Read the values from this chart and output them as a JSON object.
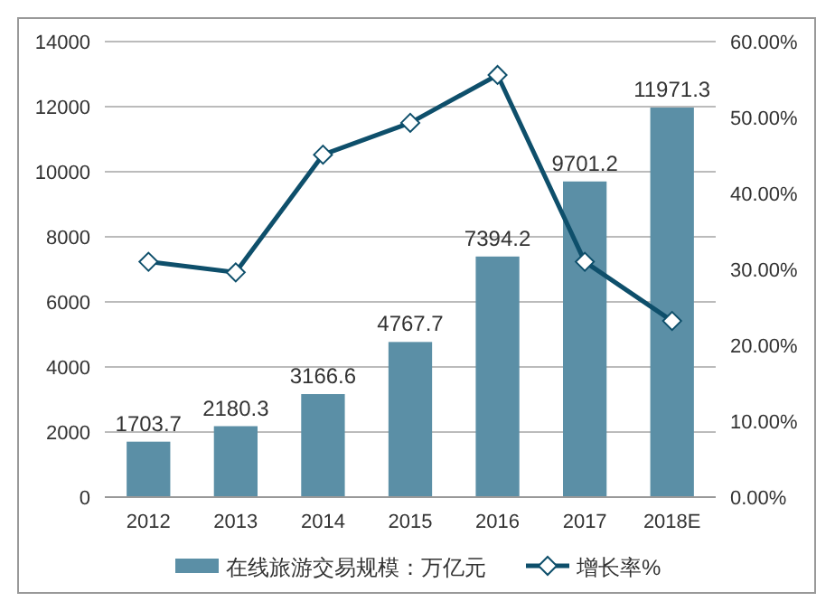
{
  "chart_data": {
    "type": "bar",
    "categories": [
      "2012",
      "2013",
      "2014",
      "2015",
      "2016",
      "2017",
      "2018E"
    ],
    "series": [
      {
        "name": "在线旅游交易规模：万亿元",
        "color": "#5b8fa6",
        "values": [
          1703.7,
          2180.3,
          3166.6,
          4767.7,
          7394.2,
          9701.2,
          11971.3
        ],
        "value_labels": [
          "1703.7",
          "2180.3",
          "3166.6",
          "4767.7",
          "7394.2",
          "9701.2",
          "11971.3"
        ]
      },
      {
        "name": "增长率%",
        "type": "line",
        "axis": "y2",
        "color": "#0e4f6b",
        "marker": "diamond",
        "values": [
          31.0,
          29.6,
          45.1,
          49.3,
          55.6,
          31.0,
          23.2
        ]
      }
    ],
    "ylim": [
      0,
      14000
    ],
    "yticks": [
      0,
      2000,
      4000,
      6000,
      8000,
      10000,
      12000,
      14000
    ],
    "y2lim": [
      0,
      60
    ],
    "y2ticks": [
      {
        "value": 0,
        "label": "0.00%"
      },
      {
        "value": 10,
        "label": "10.00%"
      },
      {
        "value": 20,
        "label": "20.00%"
      },
      {
        "value": 30,
        "label": "30.00%"
      },
      {
        "value": 40,
        "label": "40.00%"
      },
      {
        "value": 50,
        "label": "50.00%"
      },
      {
        "value": 60,
        "label": "60.00%"
      }
    ],
    "grid": "y",
    "legend": "bottom"
  }
}
